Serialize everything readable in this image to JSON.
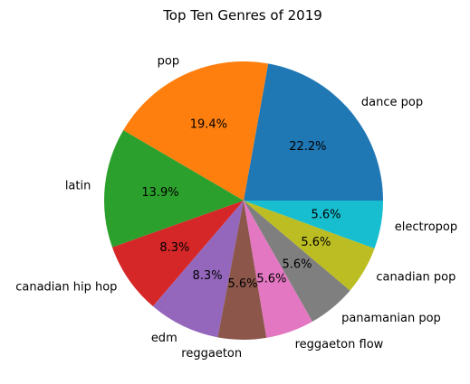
{
  "chart_data": {
    "type": "pie",
    "title": "Top Ten Genres of 2019",
    "categories": [
      "dance pop",
      "pop",
      "latin",
      "canadian hip hop",
      "edm",
      "reggaeton",
      "reggaeton flow",
      "panamanian pop",
      "canadian pop",
      "electropop"
    ],
    "values": [
      22.2,
      19.4,
      13.9,
      8.3,
      8.3,
      5.6,
      5.6,
      5.6,
      5.6,
      5.6
    ],
    "percent_labels": [
      "22.2%",
      "19.4%",
      "13.9%",
      "8.3%",
      "8.3%",
      "5.6%",
      "5.6%",
      "5.6%",
      "5.6%",
      "5.6%"
    ],
    "colors": [
      "#1f77b4",
      "#ff7f0e",
      "#2ca02c",
      "#d62728",
      "#9467bd",
      "#8c564b",
      "#e377c2",
      "#7f7f7f",
      "#bcbd22",
      "#17becf"
    ],
    "start_angle_deg": 0,
    "direction": "counterclockwise",
    "legend": "none",
    "grid": false
  }
}
